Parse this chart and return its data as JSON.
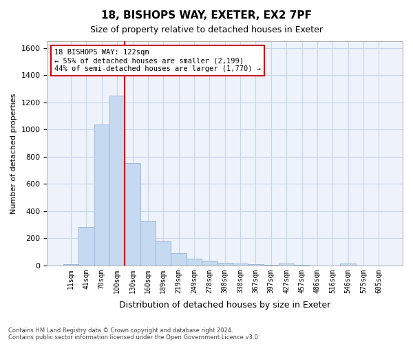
{
  "title1": "18, BISHOPS WAY, EXETER, EX2 7PF",
  "title2": "Size of property relative to detached houses in Exeter",
  "xlabel": "Distribution of detached houses by size in Exeter",
  "ylabel": "Number of detached properties",
  "bar_values": [
    10,
    280,
    1035,
    1250,
    755,
    330,
    180,
    90,
    47,
    33,
    20,
    15,
    10,
    5,
    15,
    5,
    0,
    0,
    15,
    0,
    0
  ],
  "bar_labels": [
    "11sqm",
    "41sqm",
    "70sqm",
    "100sqm",
    "130sqm",
    "160sqm",
    "189sqm",
    "219sqm",
    "249sqm",
    "278sqm",
    "308sqm",
    "338sqm",
    "367sqm",
    "397sqm",
    "427sqm",
    "457sqm",
    "486sqm",
    "516sqm",
    "546sqm",
    "575sqm",
    "605sqm"
  ],
  "bar_color": "#c5d9f0",
  "bar_edgecolor": "#a0b8d8",
  "vline_x": 3.5,
  "vline_color": "#cc0000",
  "annotation_box_text": "18 BISHOPS WAY: 122sqm\n← 55% of detached houses are smaller (2,199)\n44% of semi-detached houses are larger (1,770) →",
  "annotation_box_color": "#cc0000",
  "ylim": [
    0,
    1650
  ],
  "yticks": [
    0,
    200,
    400,
    600,
    800,
    1000,
    1200,
    1400,
    1600
  ],
  "footer_text": "Contains HM Land Registry data © Crown copyright and database right 2024.\nContains public sector information licensed under the Open Government Licence v3.0.",
  "background_color": "#eef2fa",
  "grid_color": "#c8d4e8"
}
